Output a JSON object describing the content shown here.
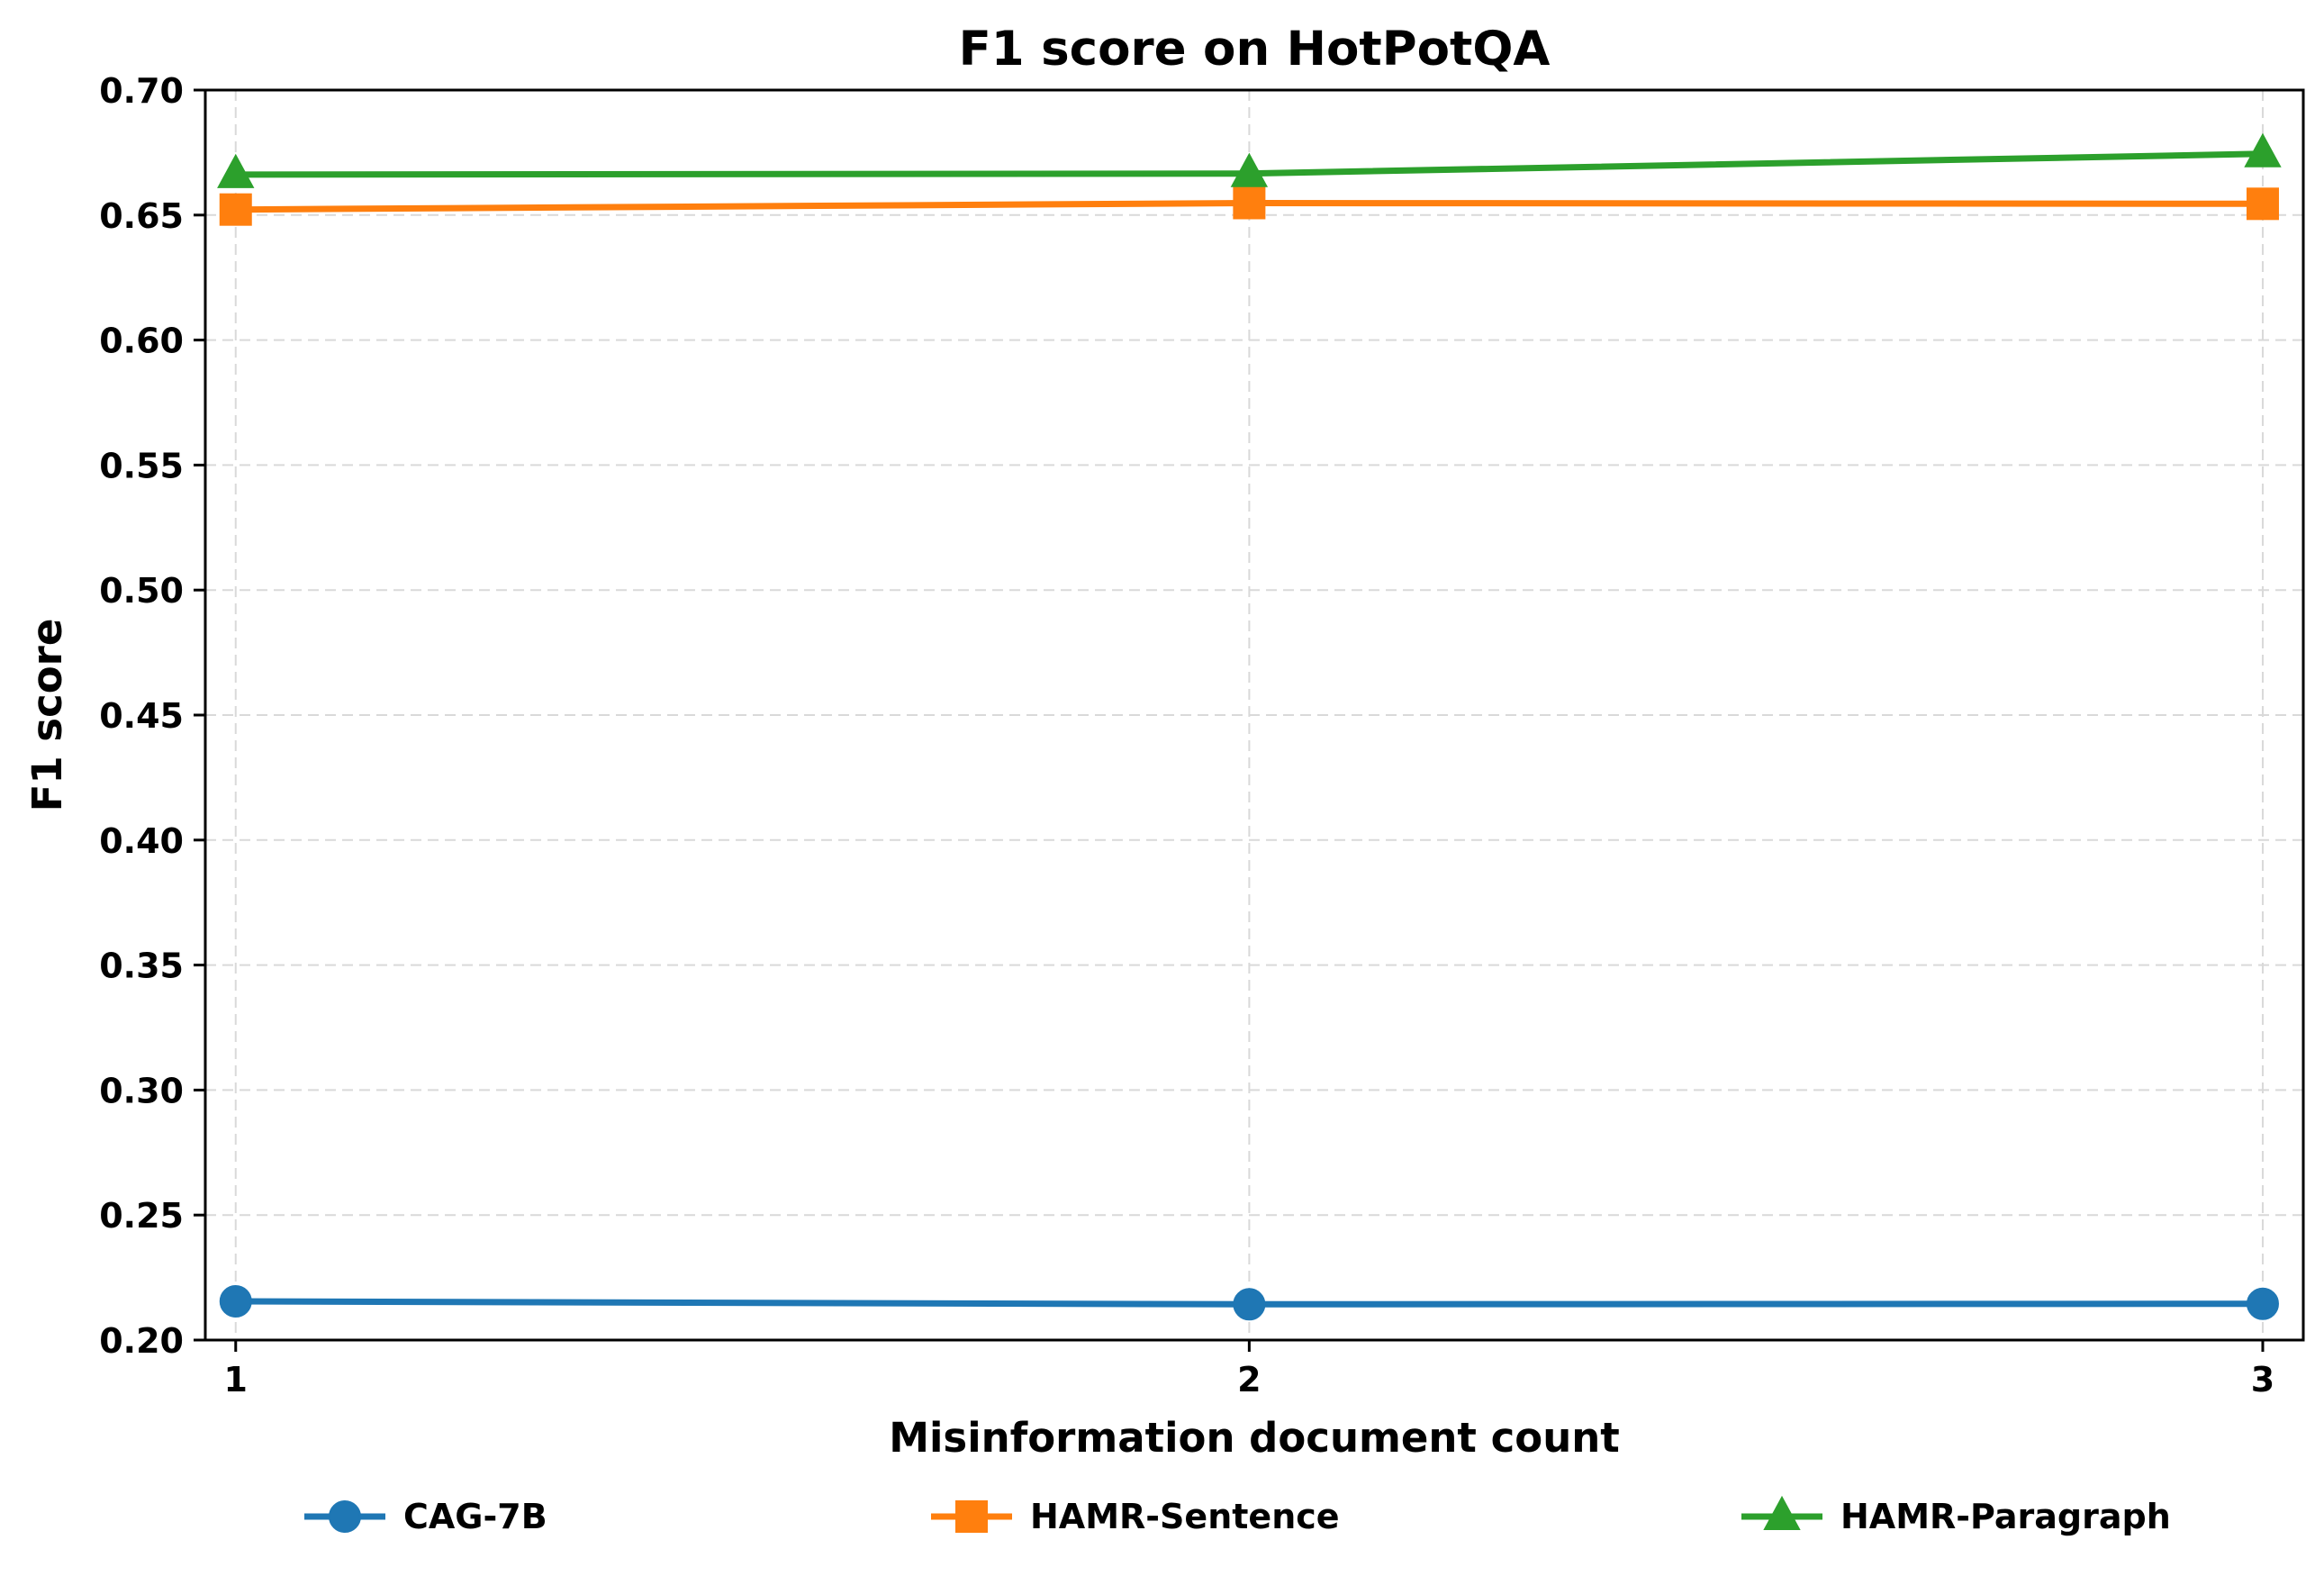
{
  "chart_data": {
    "type": "line",
    "title": "F1 score on HotPotQA",
    "xlabel": "Misinformation document count",
    "ylabel": "F1 score",
    "x": [
      1,
      2,
      3
    ],
    "x_tick_labels": [
      "1",
      "2",
      "3"
    ],
    "xlim": [
      0.97,
      3.04
    ],
    "ylim": [
      0.2,
      0.7
    ],
    "y_ticks": [
      0.2,
      0.25,
      0.3,
      0.35,
      0.4,
      0.45,
      0.5,
      0.55,
      0.6,
      0.65,
      0.7
    ],
    "y_tick_labels": [
      "0.20",
      "0.25",
      "0.30",
      "0.35",
      "0.40",
      "0.45",
      "0.50",
      "0.55",
      "0.60",
      "0.65",
      "0.70"
    ],
    "grid": true,
    "legend_position": "bottom",
    "series": [
      {
        "name": "CAG-7B",
        "values": [
          0.2155,
          0.2143,
          0.2145
        ],
        "color": "#1f77b4",
        "marker": "circle"
      },
      {
        "name": "HAMR-Sentence",
        "values": [
          0.6522,
          0.6548,
          0.6545
        ],
        "color": "#ff7f0e",
        "marker": "square"
      },
      {
        "name": "HAMR-Paragraph",
        "values": [
          0.6662,
          0.6666,
          0.6745
        ],
        "color": "#2ca02c",
        "marker": "triangle"
      }
    ]
  }
}
